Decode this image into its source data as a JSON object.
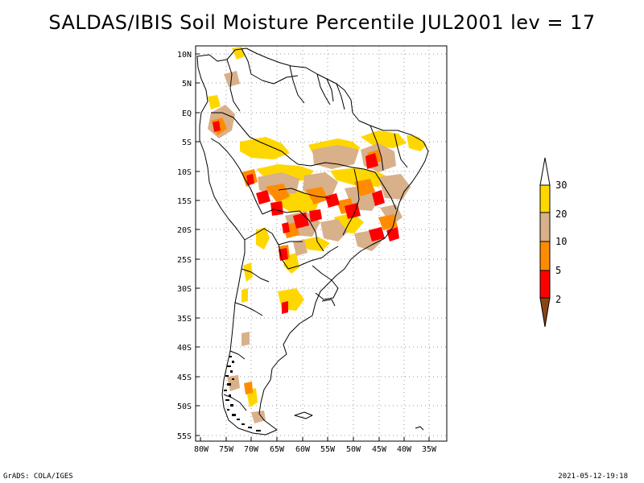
{
  "title": "SALDAS/IBIS Soil Moisture Percentile JUL2001 lev = 17",
  "map": {
    "lat_ticks": [
      "10N",
      "5N",
      "EQ",
      "5S",
      "10S",
      "15S",
      "20S",
      "25S",
      "30S",
      "35S",
      "40S",
      "45S",
      "50S",
      "55S"
    ],
    "lon_ticks": [
      "80W",
      "75W",
      "70W",
      "65W",
      "60W",
      "55W",
      "50W",
      "45W",
      "40W",
      "35W"
    ]
  },
  "legend": {
    "labels": [
      "30",
      "20",
      "10",
      "5",
      "2"
    ],
    "colors": {
      "above_30": "#ffffff",
      "20_30": "#ffd700",
      "10_20": "#d8b08a",
      "5_10": "#ff8c00",
      "2_5": "#ff0000",
      "below_2": "#8b4513"
    }
  },
  "footer": {
    "left": "GrADS: COLA/IGES",
    "right": "2021-05-12-19:18"
  }
}
